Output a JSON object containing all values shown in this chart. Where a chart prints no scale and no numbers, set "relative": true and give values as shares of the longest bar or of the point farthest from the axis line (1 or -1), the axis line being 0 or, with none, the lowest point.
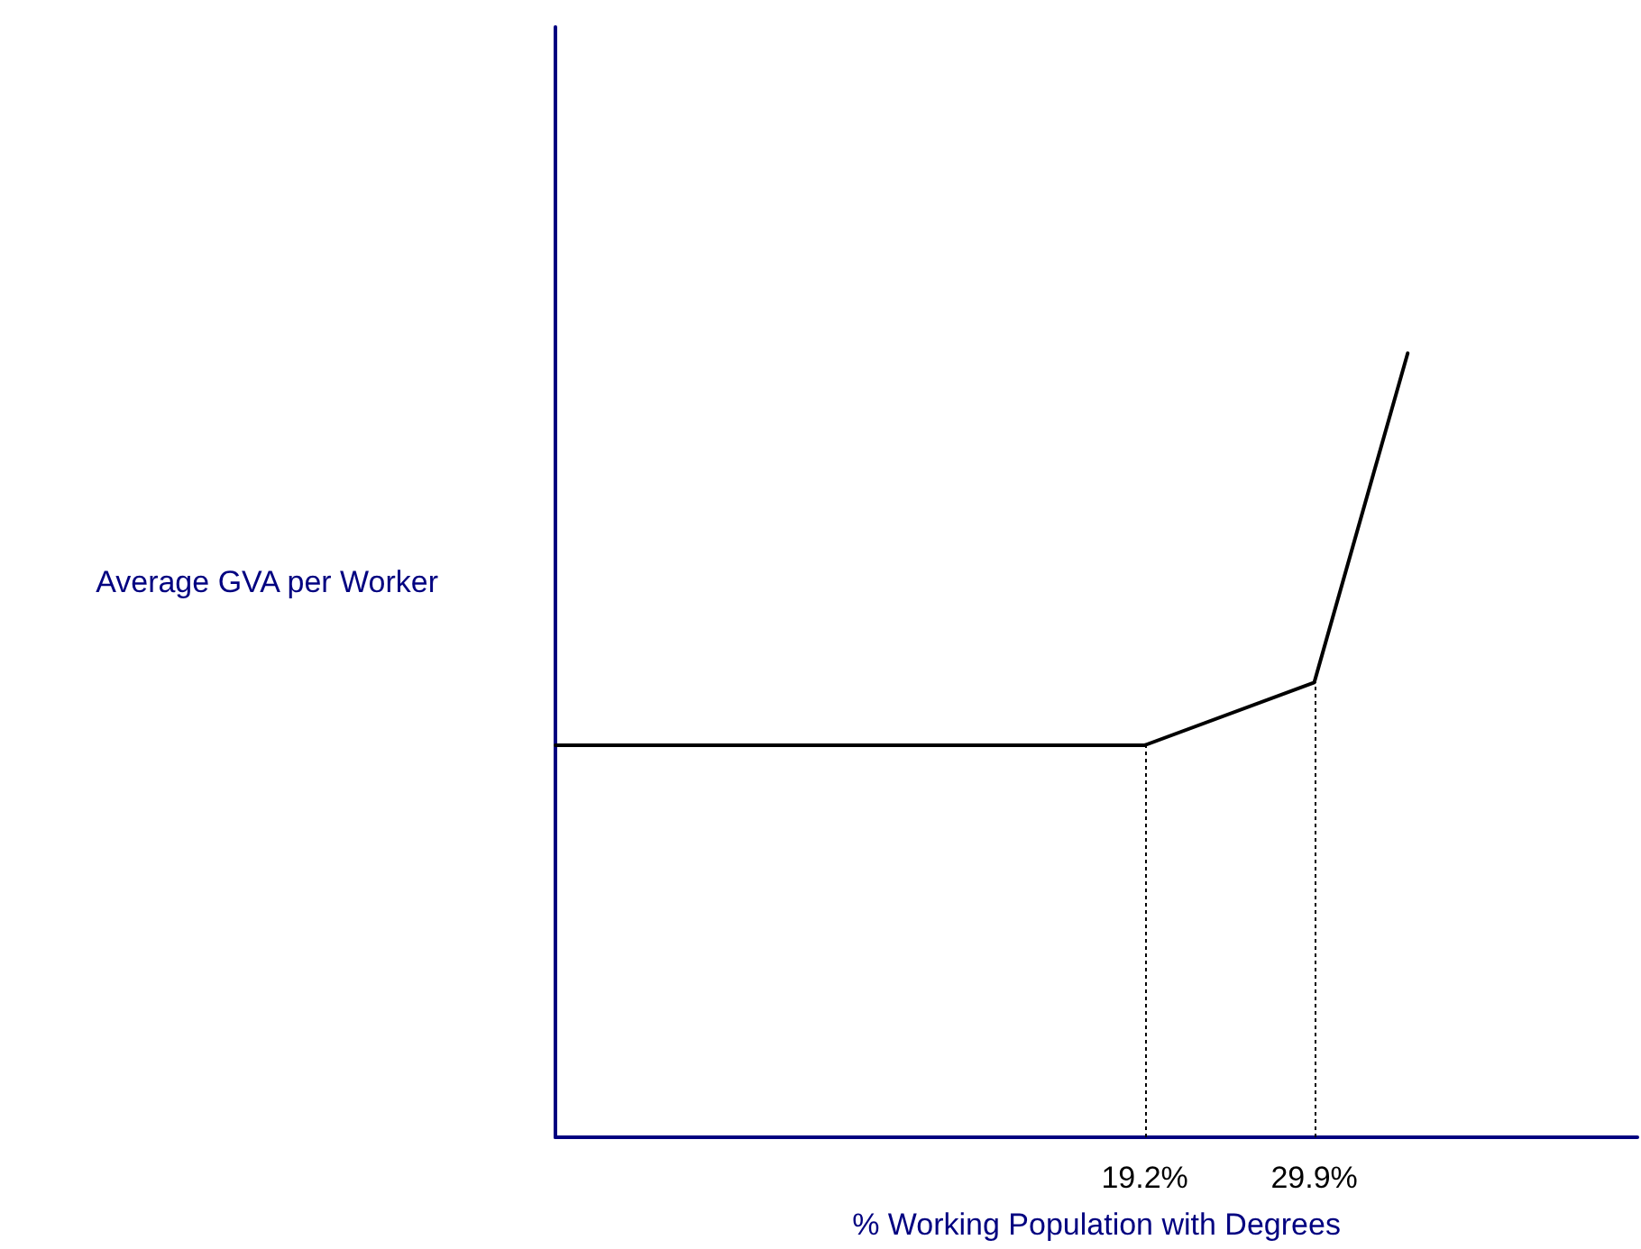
{
  "chart_data": {
    "type": "line",
    "relative": true,
    "ylabel": "Average GVA per Worker",
    "xlabel": "% Working Population with Degrees",
    "x": [
      -18,
      19.2,
      29.9,
      35.8
    ],
    "series": [
      {
        "color": "#000000",
        "values": [
          0.5,
          0.5,
          0.58,
          1
        ]
      }
    ],
    "xlim": [
      -18,
      50.3
    ],
    "xticks": [
      {
        "value": 19.2,
        "label": "19.2%"
      },
      {
        "value": 29.9,
        "label": "29.9%"
      }
    ],
    "ref_lines": [
      {
        "axis": "x",
        "value": 19.2,
        "label": null,
        "color": "#000000",
        "line_style": "dotted"
      },
      {
        "axis": "x",
        "value": 29.9,
        "label": null,
        "color": "#000000",
        "line_style": "dotted"
      }
    ],
    "grid": false,
    "marker": "none",
    "line_style": "solid"
  }
}
